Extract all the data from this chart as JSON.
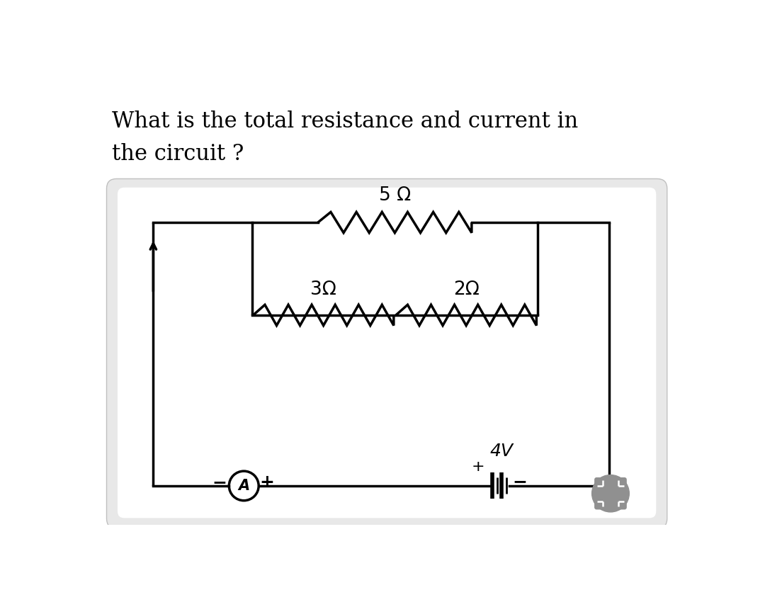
{
  "title_line1": "What is the total resistance and current in",
  "title_line2": "the circuit ?",
  "title_fontsize": 22,
  "white": "#ffffff",
  "black": "#000000",
  "gray_bg": "#e8e8e8",
  "resistor_5": "5 Ω",
  "resistor_3": "3Ω",
  "resistor_2": "2Ω",
  "voltage": "4V",
  "ammeter": "A"
}
